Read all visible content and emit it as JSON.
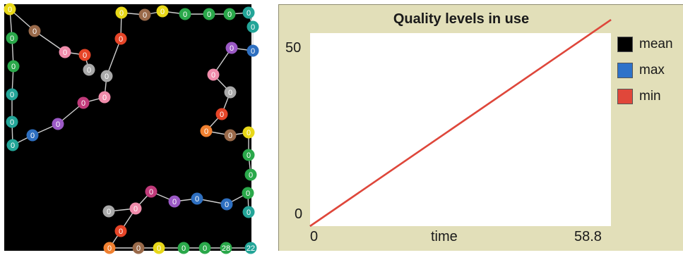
{
  "world": {
    "node_label_default": "0",
    "node_label_28": "28",
    "node_label_22": "22",
    "node_colors": [
      "#e8d818",
      "#2aa84a",
      "#23a598",
      "#2e6fc0",
      "#9b59c5",
      "#e64528",
      "#f08030",
      "#9a6a4a",
      "#a9a9a9",
      "#f08cab",
      "#c03a7a"
    ]
  },
  "plot": {
    "title": "Quality levels in use",
    "x_axis_label": "time",
    "x_min_label": "0",
    "x_max_label": "58.8",
    "y_min_label": "0",
    "y_max_label": "50",
    "legend": [
      {
        "label": "mean",
        "color": "#000000"
      },
      {
        "label": "max",
        "color": "#2e72c9"
      },
      {
        "label": "min",
        "color": "#e0473a"
      }
    ]
  },
  "chart_data": {
    "type": "line",
    "title": "Quality levels in use",
    "xlabel": "time",
    "ylabel": "",
    "xlim": [
      0,
      58.8
    ],
    "ylim": [
      0,
      55
    ],
    "series": [
      {
        "name": "mean",
        "x": [
          0,
          58.8
        ],
        "y": [
          0,
          58.8
        ]
      },
      {
        "name": "max",
        "x": [
          0,
          58.8
        ],
        "y": [
          0,
          58.8
        ]
      },
      {
        "name": "min",
        "x": [
          0,
          58.8
        ],
        "y": [
          0,
          58.8
        ]
      }
    ]
  }
}
